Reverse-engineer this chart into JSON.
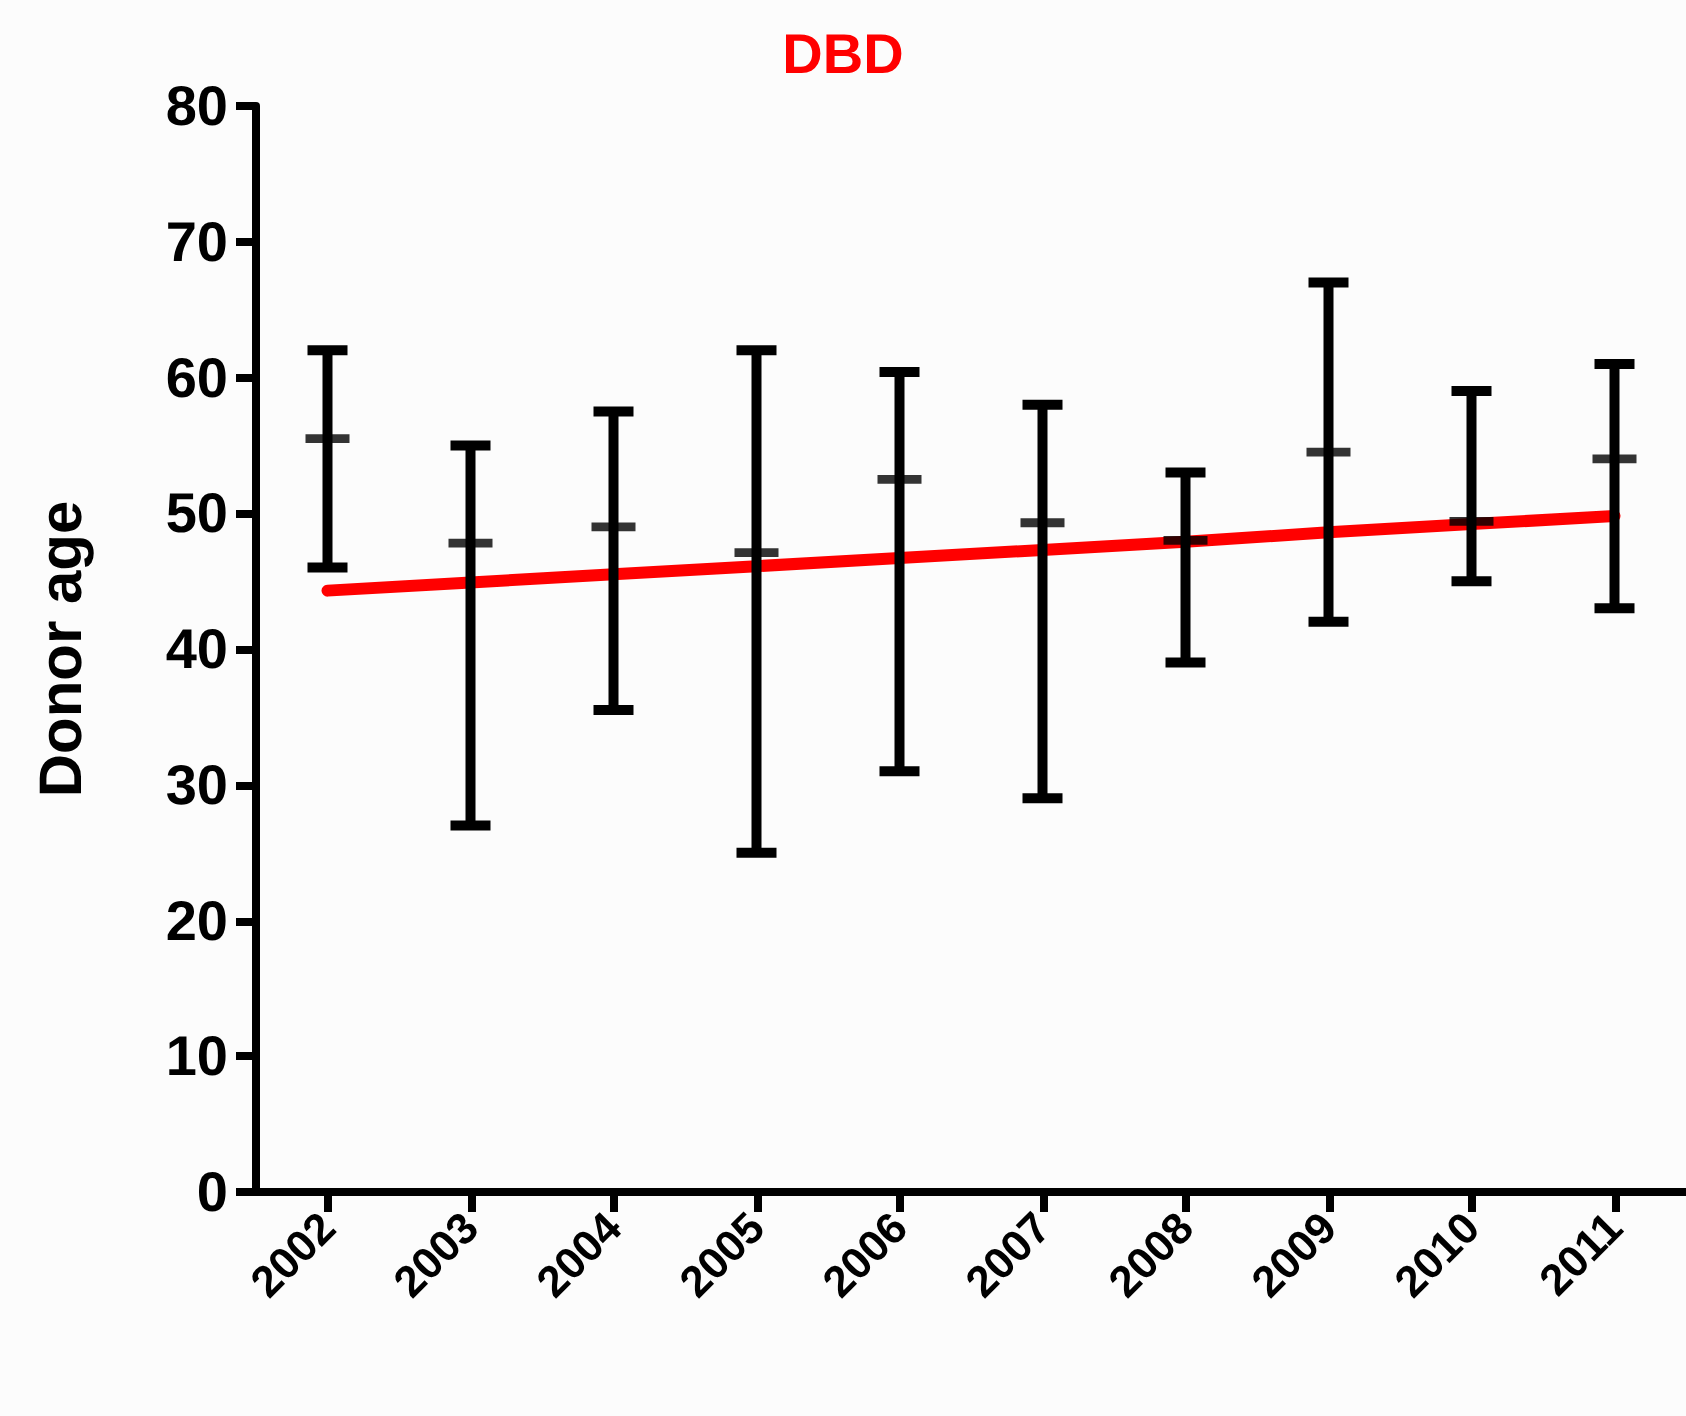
{
  "chart_data": {
    "type": "scatter",
    "title": "DBD",
    "ylabel": "Donor age",
    "categories": [
      "2002",
      "2003",
      "2004",
      "2005",
      "2006",
      "2007",
      "2008",
      "2009",
      "2010",
      "2011"
    ],
    "series": [
      {
        "color": "#000000",
        "marker": "cross",
        "values": [
          55.5,
          47.8,
          49,
          47.1,
          52.5,
          49.3,
          48,
          54.5,
          49.4,
          54
        ],
        "errors": [
          [
            46,
            62
          ],
          [
            27,
            55
          ],
          [
            35.5,
            57.5
          ],
          [
            25,
            62
          ],
          [
            31,
            60.4
          ],
          [
            29,
            58
          ],
          [
            39,
            53
          ],
          [
            42,
            67
          ],
          [
            45,
            59
          ],
          [
            43,
            61
          ]
        ]
      },
      {
        "type": "line",
        "color": "#ff0000",
        "values": [
          44.3,
          44.9,
          45.5,
          46.1,
          46.7,
          47.3,
          47.9,
          48.6,
          49.2,
          49.8
        ]
      }
    ],
    "ylim": [
      0,
      80
    ],
    "yticks": [
      0,
      10,
      20,
      30,
      40,
      50,
      60,
      70,
      80
    ],
    "grid": false
  }
}
